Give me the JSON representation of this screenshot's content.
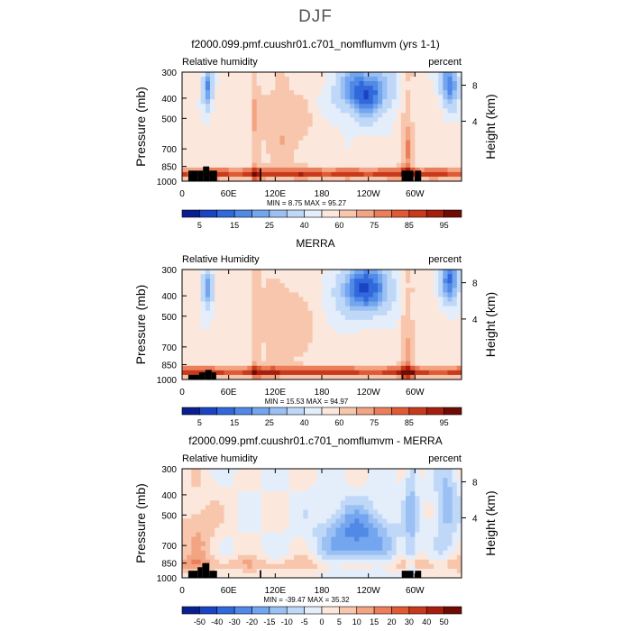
{
  "figure": {
    "title": "DJF"
  },
  "chart_data": [
    {
      "type": "heatmap",
      "title": "f2000.099.pmf.cuushr01.c701_nomflumvm (yrs 1-1)",
      "left_label": "Relative humidity",
      "right_label": "percent",
      "ylabel": "Pressure (mb)",
      "y2label": "Height (km)",
      "x_ticks": [
        "0",
        "60E",
        "120E",
        "180",
        "120W",
        "60W"
      ],
      "x_tick_lon": [
        0,
        60,
        120,
        180,
        240,
        300
      ],
      "xlim": [
        0,
        360
      ],
      "y_ticks": [
        "300",
        "400",
        "500",
        "700",
        "850",
        "1000"
      ],
      "y_tick_p": [
        300,
        400,
        500,
        700,
        850,
        1000
      ],
      "ylim": [
        1000,
        300
      ],
      "y2_ticks": [
        "8",
        "4"
      ],
      "stats_text": "MIN =    8.75   MAX =   95.27",
      "min": 8.75,
      "max": 95.27,
      "colorbar_labels": [
        "5",
        "15",
        "25",
        "40",
        "60",
        "75",
        "85",
        "95"
      ],
      "colorbar_colors": [
        "#0a1e8f",
        "#1944c4",
        "#3169dc",
        "#5089e6",
        "#73a6ee",
        "#9ac0f4",
        "#c0d8f8",
        "#e4eefb",
        "#fbe7dc",
        "#f7c6ad",
        "#f2a483",
        "#ec7f5b",
        "#e05a35",
        "#c83a1c",
        "#a61e0d",
        "#6f0b03"
      ]
    },
    {
      "type": "heatmap",
      "title": "MERRA",
      "left_label": "Relative Humidity",
      "right_label": "percent",
      "ylabel": "Pressure (mb)",
      "y2label": "Height (km)",
      "x_ticks": [
        "0",
        "60E",
        "120E",
        "180",
        "120W",
        "60W"
      ],
      "x_tick_lon": [
        0,
        60,
        120,
        180,
        240,
        300
      ],
      "xlim": [
        0,
        360
      ],
      "y_ticks": [
        "300",
        "400",
        "500",
        "700",
        "850",
        "1000"
      ],
      "y_tick_p": [
        300,
        400,
        500,
        700,
        850,
        1000
      ],
      "ylim": [
        1000,
        300
      ],
      "y2_ticks": [
        "8",
        "4"
      ],
      "stats_text": "MIN =   15.53   MAX =   94.97",
      "min": 15.53,
      "max": 94.97,
      "colorbar_labels": [
        "5",
        "15",
        "25",
        "40",
        "60",
        "75",
        "85",
        "95"
      ],
      "colorbar_colors": [
        "#0a1e8f",
        "#1944c4",
        "#3169dc",
        "#5089e6",
        "#73a6ee",
        "#9ac0f4",
        "#c0d8f8",
        "#e4eefb",
        "#fbe7dc",
        "#f7c6ad",
        "#f2a483",
        "#ec7f5b",
        "#e05a35",
        "#c83a1c",
        "#a61e0d",
        "#6f0b03"
      ]
    },
    {
      "type": "heatmap",
      "title": "f2000.099.pmf.cuushr01.c701_nomflumvm - MERRA",
      "left_label": "Relative humidity",
      "right_label": "percent",
      "ylabel": "Pressure (mb)",
      "y2label": "Height (km)",
      "x_ticks": [
        "0",
        "60E",
        "120E",
        "180",
        "120W",
        "60W"
      ],
      "x_tick_lon": [
        0,
        60,
        120,
        180,
        240,
        300
      ],
      "xlim": [
        0,
        360
      ],
      "y_ticks": [
        "300",
        "400",
        "500",
        "700",
        "850",
        "1000"
      ],
      "y_tick_p": [
        300,
        400,
        500,
        700,
        850,
        1000
      ],
      "ylim": [
        1000,
        300
      ],
      "y2_ticks": [
        "8",
        "4"
      ],
      "stats_text": "MIN =  -39.47   MAX =   35.32",
      "min": -39.47,
      "max": 35.32,
      "colorbar_labels": [
        "-50",
        "-40",
        "-30",
        "-20",
        "-15",
        "-10",
        "-5",
        "0",
        "5",
        "10",
        "15",
        "20",
        "30",
        "40",
        "50"
      ],
      "colorbar_colors": [
        "#0a1e8f",
        "#1944c4",
        "#3169dc",
        "#5089e6",
        "#73a6ee",
        "#9ac0f4",
        "#c0d8f8",
        "#e4eefb",
        "#fbe7dc",
        "#f7c6ad",
        "#f2a483",
        "#ec7f5b",
        "#e05a35",
        "#c83a1c",
        "#a61e0d",
        "#6f0b03"
      ]
    }
  ]
}
